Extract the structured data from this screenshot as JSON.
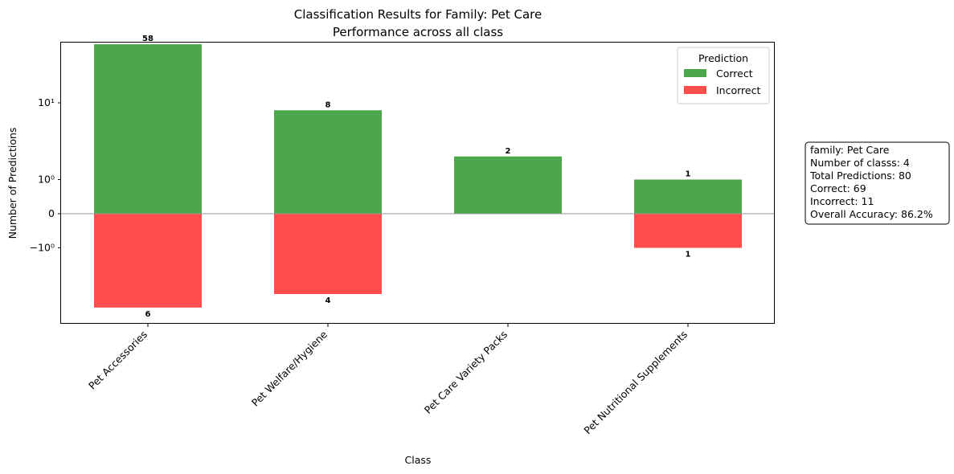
{
  "chart_data": {
    "type": "bar",
    "title": "Classification Results for Family: Pet Care",
    "subtitle": "Performance across all class",
    "xlabel": "Class",
    "ylabel": "Number of Predictions",
    "y_scale": "symlog",
    "ylim": [
      -8.5,
      130
    ],
    "y_ticks": [
      {
        "value": 10,
        "label": "10¹"
      },
      {
        "value": 1,
        "label": "10⁰"
      },
      {
        "value": 0,
        "label": "0"
      },
      {
        "value": -1,
        "label": "−10⁰"
      }
    ],
    "categories": [
      "Pet Accessories",
      "Pet Welfare/Hygiene",
      "Pet Care Variety Packs",
      "Pet Nutritional Supplements"
    ],
    "series": [
      {
        "name": "Correct",
        "values": [
          58,
          8,
          2,
          1
        ],
        "color": "#4ca64c",
        "direction": "up"
      },
      {
        "name": "Incorrect",
        "values": [
          6,
          4,
          0,
          1
        ],
        "color": "#ff4c4c",
        "direction": "down"
      }
    ],
    "legend": {
      "title": "Prediction",
      "position": "top-right"
    },
    "grid": false,
    "zero_line": true
  },
  "stats_box": {
    "lines": [
      "family: Pet Care",
      "Number of classs: 4",
      "Total Predictions: 80",
      "Correct: 69",
      "Incorrect: 11",
      "Overall Accuracy: 86.2%"
    ]
  }
}
